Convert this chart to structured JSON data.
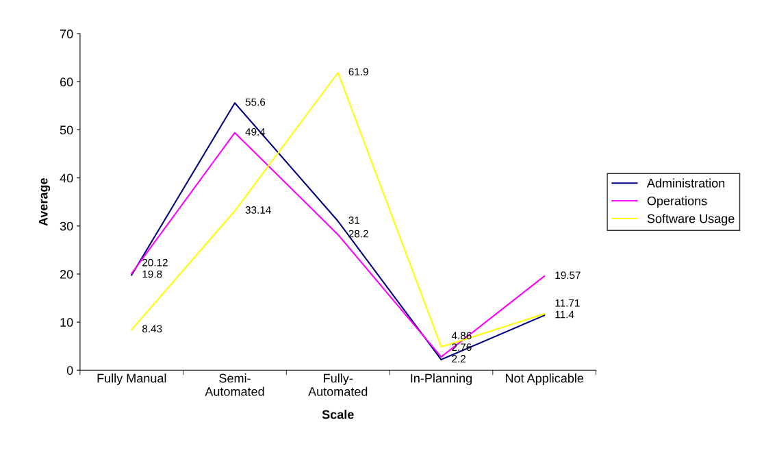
{
  "chart_data": {
    "type": "line",
    "xlabel": "Scale",
    "ylabel": "Average",
    "categories": [
      "Fully Manual",
      "Semi-\nAutomated",
      "Fully-\nAutomated",
      "In-Planning",
      "Not Applicable"
    ],
    "series": [
      {
        "name": "Administration",
        "color": "#000080",
        "values": [
          19.8,
          55.6,
          31,
          2.2,
          11.4
        ]
      },
      {
        "name": "Operations",
        "color": "#ff00ff",
        "values": [
          20.12,
          49.4,
          28.2,
          2.76,
          19.57
        ]
      },
      {
        "name": "Software Usage",
        "color": "#ffff00",
        "values": [
          8.43,
          33.14,
          61.9,
          4.86,
          11.71
        ]
      }
    ],
    "ylim": [
      0,
      70
    ],
    "yticks": [
      0,
      10,
      20,
      30,
      40,
      50,
      60,
      70
    ],
    "data_labels": true,
    "legend": "right",
    "grid": false,
    "marker": "none",
    "line_style": "solid"
  }
}
